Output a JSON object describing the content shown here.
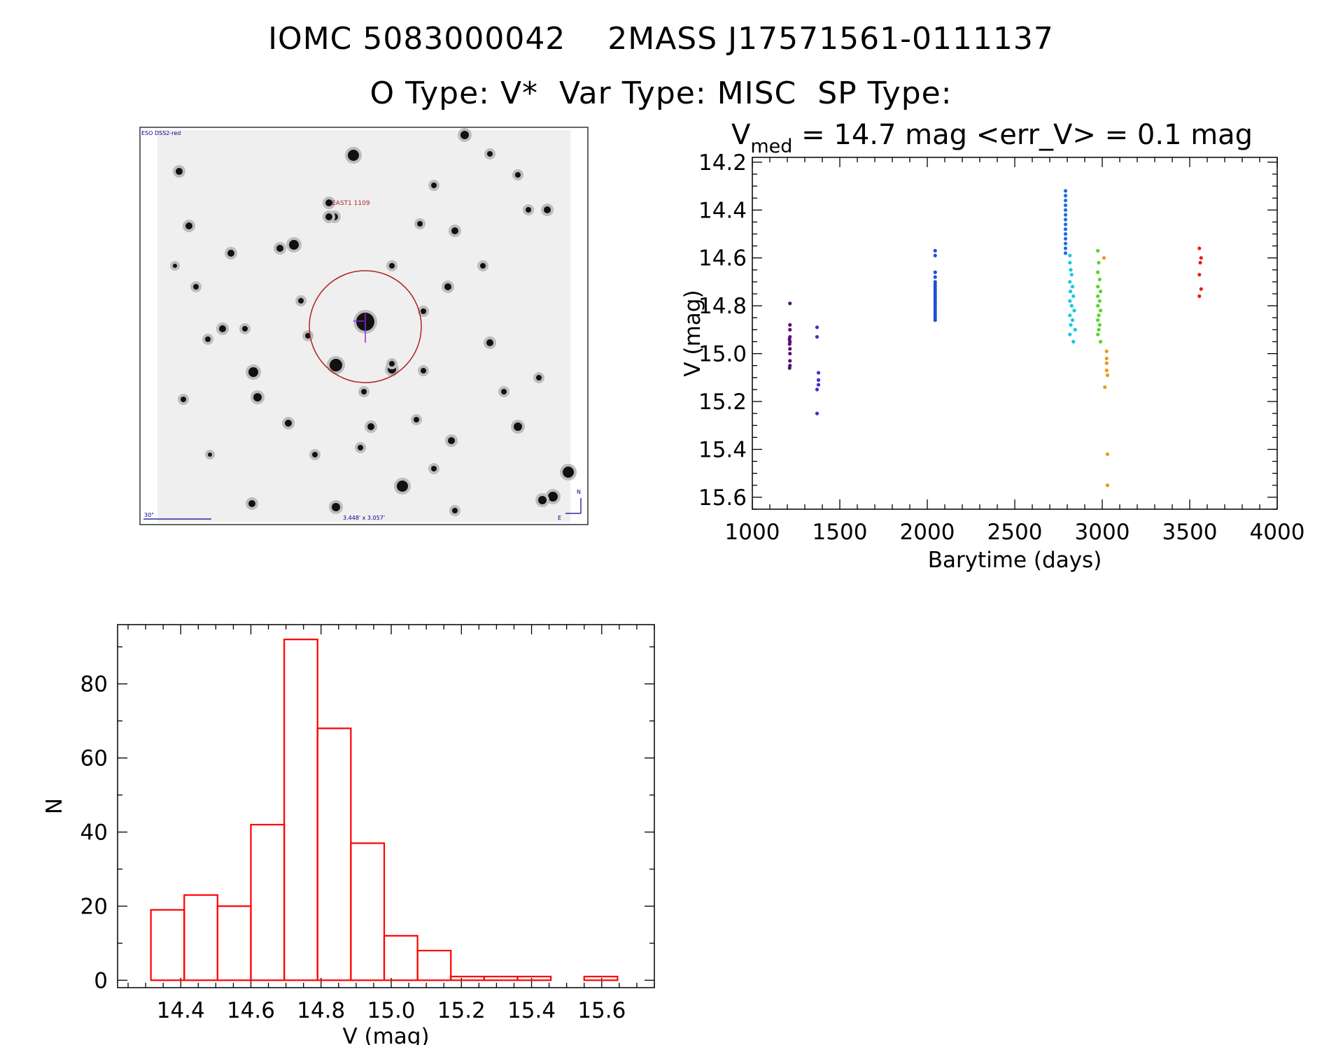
{
  "header": {
    "line1": "IOMC 5083000042    2MASS J17571561-0111137",
    "line2": "O Type: V*  Var Type: MISC  SP Type:"
  },
  "finder": {
    "survey_label": "ESO DSS2-red",
    "target_label": "EAST1 1109",
    "scale_label": "30\"",
    "fov_label": "3.448' x 3.057'",
    "compass_n": "N",
    "compass_e": "E",
    "colors": {
      "circle": "#b22222",
      "label": "#b22222",
      "annot": "#00008b"
    }
  },
  "lightcurve_header": {
    "v_prefix": "V",
    "v_sub": "med",
    "stats": " = 14.7 mag <err_V> = 0.1 mag"
  },
  "chart_data": [
    {
      "type": "scatter",
      "xlabel": "Barytime (days)",
      "ylabel": "V (mag)",
      "xlim": [
        1000,
        4000
      ],
      "ylim": [
        15.65,
        14.18
      ],
      "y_inverted": true,
      "xticks": [
        1000,
        1500,
        2000,
        2500,
        3000,
        3500,
        4000
      ],
      "yticks": [
        "14.2",
        "14.4",
        "14.6",
        "14.8",
        "15.0",
        "15.2",
        "15.4",
        "15.6"
      ],
      "series": [
        {
          "color": "#5b0f7a",
          "points": [
            [
              1215,
              14.79
            ],
            [
              1215,
              14.88
            ],
            [
              1215,
              14.9
            ],
            [
              1215,
              14.93
            ],
            [
              1215,
              14.95
            ],
            [
              1213,
              14.96
            ],
            [
              1215,
              14.98
            ],
            [
              1215,
              15.0
            ],
            [
              1215,
              15.03
            ],
            [
              1215,
              15.05
            ],
            [
              1213,
              15.06
            ],
            [
              1212,
              14.94
            ]
          ]
        },
        {
          "color": "#4b2bd0",
          "points": [
            [
              1370,
              14.89
            ],
            [
              1370,
              14.93
            ],
            [
              1378,
              15.08
            ],
            [
              1378,
              15.11
            ],
            [
              1378,
              15.13
            ],
            [
              1370,
              15.15
            ],
            [
              1370,
              15.25
            ]
          ]
        },
        {
          "color": "#1f4fd8",
          "points": [
            [
              2045,
              14.57
            ],
            [
              2045,
              14.59
            ],
            [
              2045,
              14.66
            ],
            [
              2045,
              14.68
            ],
            [
              2045,
              14.7
            ],
            [
              2045,
              14.71
            ],
            [
              2045,
              14.72
            ],
            [
              2045,
              14.73
            ],
            [
              2045,
              14.74
            ],
            [
              2045,
              14.75
            ],
            [
              2045,
              14.76
            ],
            [
              2045,
              14.77
            ],
            [
              2045,
              14.78
            ],
            [
              2045,
              14.79
            ],
            [
              2045,
              14.8
            ],
            [
              2045,
              14.81
            ],
            [
              2045,
              14.82
            ],
            [
              2045,
              14.83
            ],
            [
              2045,
              14.84
            ],
            [
              2045,
              14.85
            ],
            [
              2045,
              14.86
            ]
          ]
        },
        {
          "color": "#1e6fe0",
          "points": [
            [
              2790,
              14.32
            ],
            [
              2790,
              14.34
            ],
            [
              2790,
              14.36
            ],
            [
              2790,
              14.38
            ],
            [
              2790,
              14.4
            ],
            [
              2790,
              14.42
            ],
            [
              2790,
              14.44
            ],
            [
              2790,
              14.46
            ],
            [
              2790,
              14.48
            ],
            [
              2790,
              14.5
            ],
            [
              2790,
              14.52
            ],
            [
              2790,
              14.54
            ],
            [
              2790,
              14.56
            ],
            [
              2790,
              14.58
            ]
          ]
        },
        {
          "color": "#18c6e6",
          "points": [
            [
              2815,
              14.59
            ],
            [
              2815,
              14.62
            ],
            [
              2820,
              14.65
            ],
            [
              2825,
              14.67
            ],
            [
              2815,
              14.7
            ],
            [
              2830,
              14.72
            ],
            [
              2818,
              14.74
            ],
            [
              2835,
              14.76
            ],
            [
              2815,
              14.78
            ],
            [
              2825,
              14.8
            ],
            [
              2840,
              14.82
            ],
            [
              2815,
              14.84
            ],
            [
              2830,
              14.86
            ],
            [
              2820,
              14.88
            ],
            [
              2845,
              14.9
            ],
            [
              2815,
              14.92
            ],
            [
              2835,
              14.95
            ]
          ]
        },
        {
          "color": "#55d62a",
          "points": [
            [
              2975,
              14.57
            ],
            [
              2980,
              14.62
            ],
            [
              2975,
              14.66
            ],
            [
              2985,
              14.69
            ],
            [
              2975,
              14.72
            ],
            [
              2990,
              14.74
            ],
            [
              2975,
              14.76
            ],
            [
              2985,
              14.78
            ],
            [
              2975,
              14.8
            ],
            [
              2990,
              14.82
            ],
            [
              2980,
              14.84
            ],
            [
              2975,
              14.86
            ],
            [
              2985,
              14.88
            ],
            [
              2980,
              14.9
            ],
            [
              2975,
              14.92
            ],
            [
              2990,
              14.95
            ]
          ]
        },
        {
          "color": "#e89b14",
          "points": [
            [
              3010,
              14.6
            ],
            [
              3025,
              14.99
            ],
            [
              3025,
              15.02
            ],
            [
              3025,
              15.04
            ],
            [
              3025,
              15.07
            ],
            [
              3030,
              15.09
            ],
            [
              3015,
              15.14
            ],
            [
              3030,
              15.42
            ],
            [
              3030,
              15.55
            ]
          ]
        },
        {
          "color": "#e81c1c",
          "points": [
            [
              3555,
              14.56
            ],
            [
              3565,
              14.6
            ],
            [
              3560,
              14.62
            ],
            [
              3555,
              14.67
            ],
            [
              3565,
              14.73
            ],
            [
              3555,
              14.76
            ]
          ]
        }
      ]
    },
    {
      "type": "bar",
      "xlabel": "V (mag)",
      "ylabel": "N",
      "xlim": [
        14.22,
        15.75
      ],
      "ylim": [
        -2,
        96
      ],
      "xticks": [
        "14.4",
        "14.6",
        "14.8",
        "15.0",
        "15.2",
        "15.4",
        "15.6"
      ],
      "yticks": [
        "0",
        "20",
        "40",
        "60",
        "80"
      ],
      "bin_edges": [
        14.315,
        14.41,
        14.505,
        14.6,
        14.695,
        14.79,
        14.885,
        14.98,
        15.075,
        15.17,
        15.265,
        15.36,
        15.455,
        15.55,
        15.645
      ],
      "values": [
        19,
        23,
        20,
        42,
        92,
        68,
        37,
        12,
        8,
        1,
        1,
        1,
        0,
        1
      ],
      "bar_color": "#ff0000"
    }
  ]
}
